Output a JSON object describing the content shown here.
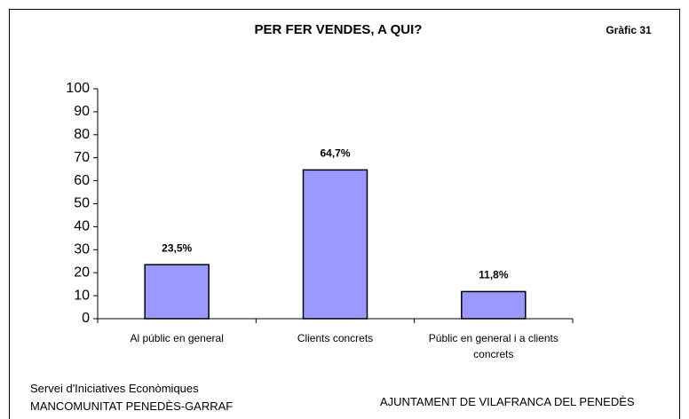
{
  "chart_data": {
    "type": "bar",
    "title": "PER FER VENDES, A QUI?",
    "subtitle": "Gràfic 31",
    "categories": [
      "Al públic en general",
      "Clients concrets",
      "Públic en general i a clients concrets"
    ],
    "values": [
      23.5,
      64.7,
      11.8
    ],
    "value_labels": [
      "23,5%",
      "64,7%",
      "11,8%"
    ],
    "color": "#9999ff",
    "ylim": [
      0,
      100
    ],
    "yticks": [
      0,
      10,
      20,
      30,
      40,
      50,
      60,
      70,
      80,
      90,
      100
    ],
    "grid": false,
    "footer_left": [
      "Servei d'Iniciatives Econòmiques",
      "MANCOMUNITAT PENEDÈS-GARRAF"
    ],
    "footer_right": "AJUNTAMENT DE VILAFRANCA DEL PENEDÈS"
  }
}
